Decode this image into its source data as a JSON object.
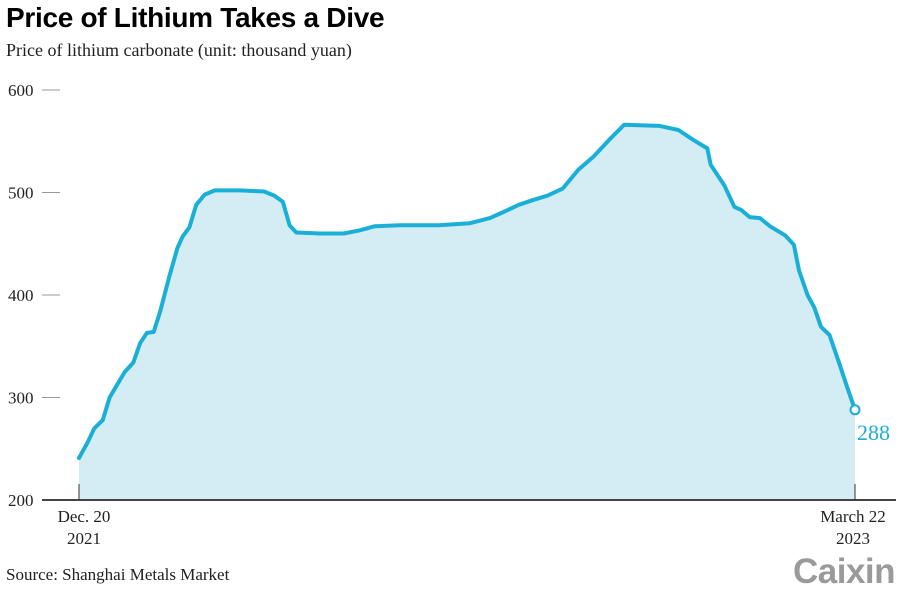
{
  "title": "Price of Lithium Takes a Dive",
  "subtitle": "Price of lithium carbonate (unit: thousand yuan)",
  "source": "Source: Shanghai Metals Market",
  "logo": "Caixin",
  "chart_data": {
    "type": "area",
    "title": "Price of Lithium Takes a Dive",
    "ylabel": "Price of lithium carbonate (unit: thousand yuan)",
    "ylim": [
      200,
      600
    ],
    "yticks": [
      "600",
      "500",
      "400",
      "300",
      "200"
    ],
    "xlim": [
      "2021-12-20",
      "2023-03-22"
    ],
    "xticks": [
      {
        "date": "2021-12-20",
        "line1": "Dec. 20",
        "line2": "2021"
      },
      {
        "date": "2023-03-22",
        "line1": "March 22",
        "line2": "2023"
      }
    ],
    "grid": false,
    "colors": {
      "line": "#1aafd6",
      "fill": "#d4edf5",
      "axis": "#444444",
      "label": "#1aafd6"
    },
    "end_label": "288",
    "x": [
      "2021-12-20",
      "2021-12-25",
      "2021-12-29",
      "2022-01-03",
      "2022-01-07",
      "2022-01-12",
      "2022-01-16",
      "2022-01-21",
      "2022-01-25",
      "2022-01-29",
      "2022-02-02",
      "2022-02-06",
      "2022-02-11",
      "2022-02-16",
      "2022-02-19",
      "2022-02-23",
      "2022-02-27",
      "2022-03-04",
      "2022-03-10",
      "2022-03-25",
      "2022-04-08",
      "2022-04-14",
      "2022-04-19",
      "2022-04-23",
      "2022-04-27",
      "2022-05-11",
      "2022-05-25",
      "2022-06-03",
      "2022-06-12",
      "2022-06-27",
      "2022-07-20",
      "2022-08-07",
      "2022-08-19",
      "2022-08-27",
      "2022-09-05",
      "2022-09-14",
      "2022-09-22",
      "2022-10-01",
      "2022-10-10",
      "2022-10-19",
      "2022-10-28",
      "2022-11-06",
      "2022-11-27",
      "2022-12-08",
      "2022-12-17",
      "2022-12-25",
      "2022-12-27",
      "2023-01-04",
      "2023-01-10",
      "2023-01-14",
      "2023-01-19",
      "2023-01-25",
      "2023-01-31",
      "2023-02-09",
      "2023-02-14",
      "2023-02-17",
      "2023-02-22",
      "2023-02-26",
      "2023-03-02",
      "2023-03-07",
      "2023-03-13",
      "2023-03-17",
      "2023-03-22"
    ],
    "values": [
      241,
      256,
      270,
      278,
      300,
      314,
      325,
      334,
      353,
      363,
      364,
      385,
      417,
      446,
      457,
      466,
      488,
      498,
      502,
      502,
      501,
      497,
      491,
      468,
      461,
      460,
      460,
      463,
      467,
      468,
      468,
      470,
      475,
      481,
      488,
      493,
      497,
      504,
      522,
      535,
      551,
      566,
      565,
      561,
      551,
      543,
      527,
      507,
      486,
      483,
      476,
      475,
      467,
      458,
      449,
      424,
      400,
      388,
      369,
      361,
      332,
      312,
      288
    ]
  }
}
